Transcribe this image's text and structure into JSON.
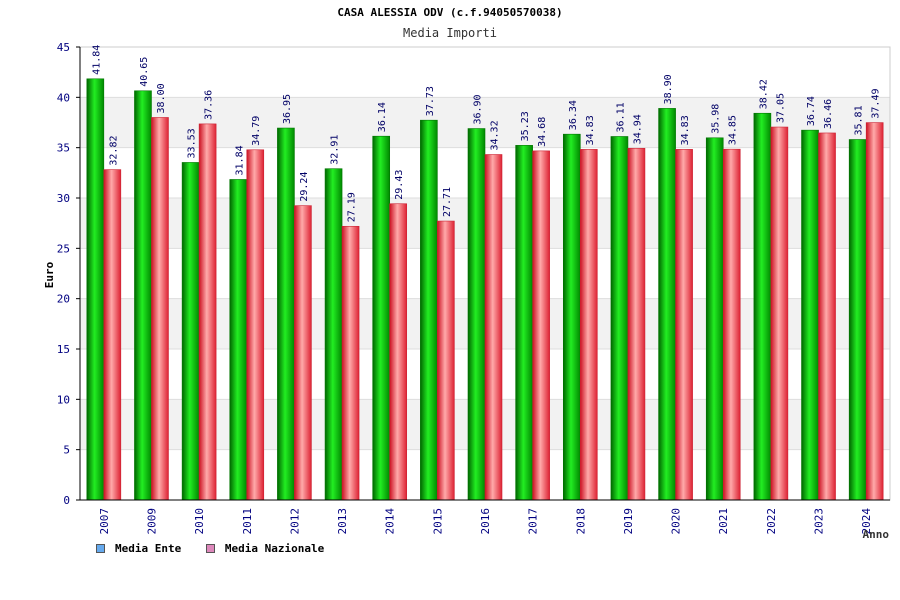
{
  "chart_data": {
    "type": "bar",
    "title": "CASA ALESSIA ODV (c.f.94050570038)",
    "subtitle": "Media Importi",
    "xlabel": "Anno",
    "ylabel": "Euro",
    "ylim": [
      0,
      45
    ],
    "yticks": [
      0,
      5,
      10,
      15,
      20,
      25,
      30,
      35,
      40,
      45
    ],
    "categories": [
      "2007",
      "2009",
      "2010",
      "2011",
      "2012",
      "2013",
      "2014",
      "2015",
      "2016",
      "2017",
      "2018",
      "2019",
      "2020",
      "2021",
      "2022",
      "2023",
      "2024"
    ],
    "series": [
      {
        "name": "Media Ente",
        "color": "#00cc00",
        "labels": [
          "41.84",
          "40.65",
          "33.53",
          "31.84",
          "36.95",
          "32.91",
          "36.14",
          "37.73",
          "36.90",
          "35.23",
          "36.34",
          "36.11",
          "38.90",
          "35.98",
          "38.42",
          "36.74",
          "35.81"
        ],
        "values": [
          41.84,
          40.65,
          33.53,
          31.84,
          36.95,
          32.91,
          36.14,
          37.73,
          36.9,
          35.23,
          36.34,
          36.11,
          38.9,
          35.98,
          38.42,
          36.74,
          35.81
        ]
      },
      {
        "name": "Media Nazionale",
        "color": "#ee4455",
        "labels": [
          "32.82",
          "38.00",
          "37.36",
          "34.79",
          "29.24",
          "27.19",
          "29.43",
          "27.71",
          "34.32",
          "34.68",
          "34.83",
          "34.94",
          "34.83",
          "34.85",
          "37.05",
          "36.46",
          "37.49"
        ],
        "values": [
          32.82,
          38.0,
          37.36,
          34.79,
          29.24,
          27.19,
          29.43,
          27.71,
          34.32,
          34.68,
          34.83,
          34.94,
          34.83,
          34.85,
          37.05,
          36.46,
          37.49
        ]
      }
    ],
    "legend": [
      {
        "label": "Media Ente",
        "color": "#66aaee"
      },
      {
        "label": "Media Nazionale",
        "color": "#dd88bb"
      }
    ],
    "legend_position": "bottom-left",
    "grid": true
  }
}
